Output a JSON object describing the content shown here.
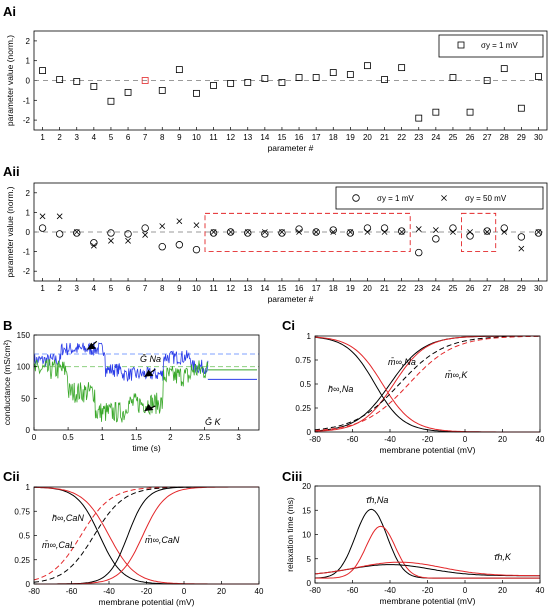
{
  "colors": {
    "black": "#000000",
    "red": "#e3272a",
    "blue": "#2c3de8",
    "green": "#3aa82a",
    "dash": "#7a7a7a",
    "lightblue": "#7fa0ff",
    "lightgreen": "#8fd080"
  },
  "charts": {
    "Ai": {
      "label": "Ai",
      "type": "scatter",
      "xlabel": "parameter #",
      "ylabel": "parameter value (norm.)",
      "xlim": [
        0.5,
        30.5
      ],
      "ylim": [
        -2.5,
        2.5
      ],
      "xticks": [
        1,
        2,
        3,
        4,
        5,
        6,
        7,
        8,
        9,
        10,
        11,
        12,
        13,
        14,
        15,
        16,
        17,
        18,
        19,
        20,
        21,
        22,
        23,
        24,
        25,
        26,
        27,
        28,
        29,
        30
      ],
      "yticks": [
        -2,
        -1,
        0,
        1,
        2
      ],
      "legend": "σy = 1 mV",
      "legend_sub": "y",
      "marker": "square",
      "highlight_index": 7,
      "values": [
        0.5,
        0.05,
        -0.05,
        -0.3,
        -1.05,
        -0.6,
        0.0,
        -0.5,
        0.55,
        -0.65,
        -0.25,
        -0.15,
        -0.1,
        0.1,
        -0.1,
        0.15,
        0.15,
        0.4,
        0.3,
        0.75,
        0.05,
        0.65,
        -1.9,
        -1.6,
        0.15,
        -1.6,
        0.0,
        0.6,
        -1.4,
        0.2
      ]
    },
    "Aii": {
      "label": "Aii",
      "type": "scatter",
      "xlabel": "parameter #",
      "ylabel": "parameter value (norm.)",
      "xlim": [
        0.5,
        30.5
      ],
      "ylim": [
        -2.5,
        2.5
      ],
      "xticks": [
        1,
        2,
        3,
        4,
        5,
        6,
        7,
        8,
        9,
        10,
        11,
        12,
        13,
        14,
        15,
        16,
        17,
        18,
        19,
        20,
        21,
        22,
        23,
        24,
        25,
        26,
        27,
        28,
        29,
        30
      ],
      "yticks": [
        -2,
        -1,
        0,
        1,
        2
      ],
      "series": [
        {
          "name": "σy = 1 mV",
          "marker": "circle",
          "values": [
            0.2,
            -0.1,
            -0.05,
            -0.55,
            -0.05,
            -0.1,
            0.2,
            -0.75,
            -0.65,
            -0.9,
            -0.05,
            0.0,
            -0.05,
            -0.1,
            -0.05,
            0.15,
            0.0,
            0.1,
            -0.05,
            0.2,
            0.2,
            0.05,
            -1.05,
            -0.35,
            0.2,
            -0.2,
            0.05,
            0.2,
            -0.25,
            -0.05
          ]
        },
        {
          "name": "σy = 50 mV",
          "marker": "x",
          "values": [
            0.8,
            0.8,
            0.0,
            -0.7,
            -0.45,
            -0.45,
            -0.15,
            0.3,
            0.55,
            0.35,
            0.0,
            0.0,
            0.0,
            0.0,
            0.0,
            0.0,
            0.0,
            0.0,
            0.0,
            0.0,
            0.0,
            0.0,
            0.15,
            0.1,
            0.0,
            0.0,
            0.0,
            0.0,
            -0.85,
            0.0
          ]
        }
      ],
      "highlight_ranges": [
        [
          10.5,
          22.5
        ],
        [
          25.5,
          27.5
        ]
      ]
    },
    "B": {
      "label": "B",
      "type": "line",
      "xlabel": "time (s)",
      "ylabel": "conductance (mS/cm²)",
      "xlim": [
        0,
        3.3
      ],
      "ylim": [
        0,
        150
      ],
      "xticks": [
        0,
        0.5,
        1,
        1.5,
        2,
        2.5,
        3
      ],
      "xtick_labels": [
        "0",
        "0.5",
        "1",
        "1.5",
        "2",
        "2.5",
        "3"
      ],
      "yticks": [
        0,
        50,
        100,
        150
      ],
      "ref_lines": {
        "Na": 120,
        "K": 100
      },
      "series_labels": {
        "Na": "Ḡ Na",
        "K": "Ḡ K"
      }
    },
    "Ci": {
      "label": "Ci",
      "type": "line",
      "xlabel": "membrane potential (mV)",
      "xlim": [
        -80,
        40
      ],
      "ylim": [
        0,
        1
      ],
      "xticks": [
        -80,
        -60,
        -40,
        -20,
        0,
        20,
        40
      ],
      "yticks": [
        0,
        0.25,
        0.5,
        0.75,
        1
      ],
      "ytick_labels": [
        "0",
        "0.25",
        "0.5",
        "0.75",
        "1"
      ],
      "curves": [
        {
          "name": "m∞,Na",
          "kind": "sig",
          "v": -40,
          "k": 9,
          "style": "solid"
        },
        {
          "name": "h∞,Na",
          "kind": "sig",
          "v": -48,
          "k": -7.5,
          "style": "solid"
        },
        {
          "name": "m∞,K",
          "kind": "sig",
          "v": -35,
          "k": 12,
          "style": "dashed"
        }
      ],
      "labels": [
        "m̄∞,Na",
        "h̄∞,Na",
        "m̄∞,K"
      ]
    },
    "Cii": {
      "label": "Cii",
      "type": "line",
      "xlabel": "membrane potential (mV)",
      "xlim": [
        -80,
        40
      ],
      "ylim": [
        0,
        1
      ],
      "xticks": [
        -80,
        -60,
        -40,
        -20,
        0,
        20,
        40
      ],
      "yticks": [
        0,
        0.25,
        0.5,
        0.75,
        1
      ],
      "ytick_labels": [
        "0",
        "0.25",
        "0.5",
        "0.75",
        "1"
      ],
      "labels": [
        "h̄∞,CaN",
        "m̄∞,CaL",
        "m̄∞,CaN"
      ]
    },
    "Ciii": {
      "label": "Ciii",
      "type": "line",
      "xlabel": "membrane potential (mV)",
      "ylabel": "relaxation time (ms)",
      "xlim": [
        -80,
        40
      ],
      "ylim": [
        0,
        20
      ],
      "xticks": [
        -80,
        -60,
        -40,
        -20,
        0,
        20,
        40
      ],
      "yticks": [
        0,
        5,
        10,
        15,
        20
      ],
      "labels": [
        "τ̄h,Na",
        "τ̄h,K"
      ],
      "curves": [
        {
          "name": "τh,Na black",
          "base": 1,
          "amp": 14.2,
          "center": -50,
          "width": 12
        },
        {
          "name": "τh,Na red",
          "base": 1,
          "amp": 10.7,
          "center": -45,
          "width": 11
        },
        {
          "name": "τh,K black",
          "base": 1.5,
          "amp": 2.3,
          "center": -40,
          "width": 30
        },
        {
          "name": "τh,K red",
          "base": 1.5,
          "amp": 2.8,
          "center": -35,
          "width": 32
        }
      ]
    }
  }
}
